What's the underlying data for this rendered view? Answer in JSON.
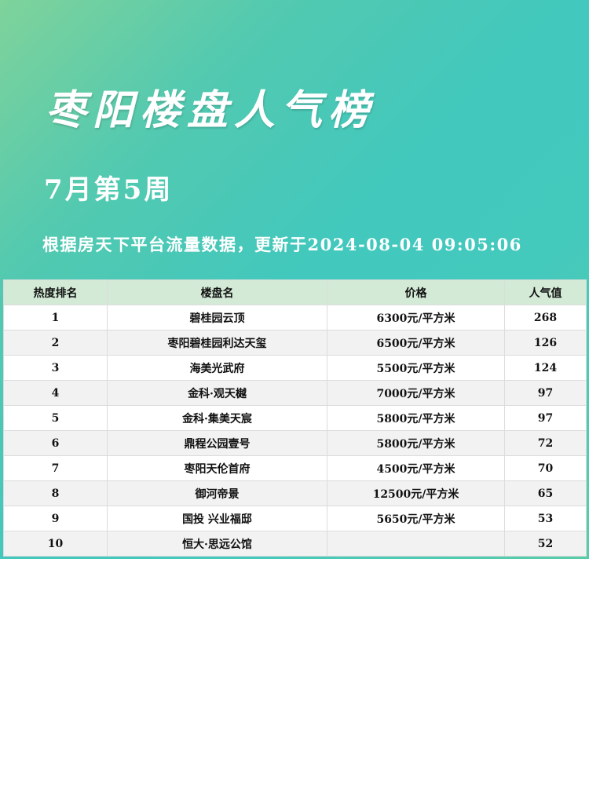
{
  "header": {
    "title": "枣阳楼盘人气榜",
    "week": "7月第5周",
    "update": "根据房天下平台流量数据，更新于2024-08-04 09:05:06"
  },
  "colors": {
    "header_row": "#d3ebd6",
    "accent": "#44c9bd"
  },
  "table": {
    "columns": [
      "热度排名",
      "楼盘名",
      "价格",
      "人气值"
    ],
    "rows": [
      [
        "1",
        "碧桂园云顶",
        "6300元/平方米",
        "268"
      ],
      [
        "2",
        "枣阳碧桂园利达天玺",
        "6500元/平方米",
        "126"
      ],
      [
        "3",
        "海美光武府",
        "5500元/平方米",
        "124"
      ],
      [
        "4",
        "金科·观天樾",
        "7000元/平方米",
        "97"
      ],
      [
        "5",
        "金科·集美天宸",
        "5800元/平方米",
        "97"
      ],
      [
        "6",
        "鼎程公园壹号",
        "5800元/平方米",
        "72"
      ],
      [
        "7",
        "枣阳天伦首府",
        "4500元/平方米",
        "70"
      ],
      [
        "8",
        "御河帝景",
        "12500元/平方米",
        "65"
      ],
      [
        "9",
        "国投 兴业福邸",
        "5650元/平方米",
        "53"
      ],
      [
        "10",
        "恒大·思远公馆",
        "",
        "52"
      ]
    ]
  }
}
